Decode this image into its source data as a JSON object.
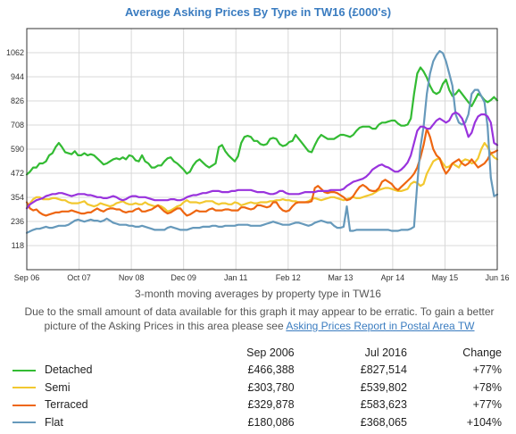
{
  "header": {
    "title": "Average Asking Prices By Type in TW16 (£000's)"
  },
  "footer": {
    "subtitle": "3-month moving averages by property type in TW16",
    "note_text": "Due to the small amount of data available for this graph it may appear to be erratic. To gain a better picture of the Asking Prices in this area please see ",
    "note_link": "Asking Prices Report in Postal Area TW"
  },
  "table": {
    "headers": [
      "",
      "Sep 2006",
      "Jul 2016",
      "Change"
    ],
    "rows": [
      {
        "name": "Detached",
        "color": "#33bb33",
        "sep2006": "£466,388",
        "jul2016": "£827,514",
        "change": "+77%"
      },
      {
        "name": "Semi",
        "color": "#f2c830",
        "sep2006": "£303,780",
        "jul2016": "£539,802",
        "change": "+78%"
      },
      {
        "name": "Terraced",
        "color": "#ee6611",
        "sep2006": "£329,878",
        "jul2016": "£583,623",
        "change": "+77%"
      },
      {
        "name": "Flat",
        "color": "#6699bb",
        "sep2006": "£180,086",
        "jul2016": "£368,065",
        "change": "+104%"
      }
    ]
  },
  "chart_data": {
    "type": "line",
    "title": "Average Asking Prices By Type in TW16 (£000's)",
    "xlabel": "",
    "ylabel": "",
    "x_ticks": [
      "Sep 06",
      "Oct 07",
      "Nov 08",
      "Dec 09",
      "Jan 11",
      "Feb 12",
      "Mar 13",
      "Apr 14",
      "May 15",
      "Jun 16"
    ],
    "y_ticks": [
      118,
      236,
      354,
      472,
      590,
      708,
      826,
      944,
      1062
    ],
    "ylim": [
      0,
      1180
    ],
    "grid": true,
    "series": [
      {
        "name": "Detached",
        "color": "#33bb33",
        "values": [
          466,
          480,
          500,
          500,
          520,
          520,
          530,
          560,
          570,
          600,
          620,
          600,
          575,
          570,
          565,
          580,
          560,
          560,
          570,
          560,
          565,
          560,
          545,
          530,
          515,
          520,
          530,
          540,
          545,
          540,
          550,
          540,
          560,
          555,
          535,
          530,
          560,
          530,
          520,
          500,
          500,
          510,
          510,
          530,
          545,
          550,
          530,
          520,
          505,
          490,
          470,
          480,
          510,
          530,
          540,
          525,
          510,
          500,
          510,
          520,
          600,
          610,
          580,
          560,
          545,
          530,
          555,
          620,
          650,
          655,
          650,
          630,
          630,
          615,
          610,
          615,
          640,
          645,
          640,
          615,
          605,
          610,
          625,
          630,
          660,
          640,
          620,
          600,
          580,
          575,
          610,
          640,
          660,
          650,
          640,
          640,
          640,
          650,
          660,
          660,
          655,
          650,
          660,
          680,
          695,
          700,
          700,
          700,
          690,
          690,
          710,
          720,
          720,
          725,
          730,
          730,
          715,
          705,
          705,
          710,
          740,
          860,
          960,
          990,
          970,
          940,
          900,
          870,
          860,
          870,
          910,
          930,
          880,
          850,
          860,
          880,
          860,
          840,
          820,
          800,
          830,
          860,
          850,
          830,
          820,
          830,
          845,
          828
        ]
      },
      {
        "name": "Semi",
        "color": "#f2c830",
        "values": [
          303,
          325,
          345,
          355,
          355,
          345,
          345,
          345,
          350,
          350,
          345,
          340,
          340,
          330,
          325,
          325,
          325,
          330,
          335,
          320,
          315,
          310,
          315,
          325,
          320,
          315,
          310,
          315,
          325,
          330,
          335,
          325,
          320,
          320,
          325,
          320,
          320,
          330,
          320,
          315,
          310,
          315,
          310,
          300,
          285,
          290,
          300,
          310,
          315,
          330,
          340,
          330,
          330,
          330,
          325,
          330,
          335,
          335,
          335,
          325,
          320,
          325,
          325,
          320,
          320,
          330,
          325,
          315,
          320,
          325,
          330,
          325,
          325,
          330,
          330,
          330,
          335,
          335,
          340,
          340,
          345,
          340,
          340,
          335,
          335,
          330,
          330,
          330,
          335,
          345,
          350,
          345,
          340,
          345,
          350,
          355,
          355,
          350,
          345,
          340,
          345,
          350,
          355,
          350,
          350,
          355,
          360,
          365,
          370,
          380,
          390,
          395,
          400,
          400,
          395,
          390,
          385,
          385,
          390,
          395,
          420,
          430,
          425,
          410,
          420,
          470,
          500,
          530,
          540,
          545,
          520,
          500,
          505,
          520,
          510,
          500,
          530,
          540,
          535,
          520,
          525,
          545,
          590,
          620,
          600,
          570,
          550,
          540
        ]
      },
      {
        "name": "Terraced",
        "color": "#ee6611",
        "values": [
          330,
          300,
          290,
          295,
          280,
          270,
          265,
          270,
          275,
          280,
          280,
          285,
          285,
          285,
          290,
          285,
          280,
          275,
          275,
          280,
          280,
          290,
          300,
          290,
          285,
          295,
          300,
          300,
          295,
          295,
          285,
          280,
          285,
          285,
          295,
          300,
          285,
          285,
          290,
          295,
          305,
          315,
          300,
          285,
          275,
          280,
          290,
          300,
          300,
          280,
          265,
          270,
          280,
          290,
          285,
          285,
          285,
          295,
          300,
          290,
          290,
          290,
          295,
          295,
          290,
          290,
          290,
          305,
          305,
          300,
          295,
          300,
          315,
          315,
          310,
          305,
          310,
          330,
          330,
          305,
          290,
          285,
          290,
          310,
          325,
          330,
          330,
          330,
          330,
          335,
          400,
          410,
          395,
          380,
          375,
          380,
          380,
          375,
          365,
          355,
          340,
          345,
          360,
          385,
          405,
          415,
          405,
          390,
          385,
          385,
          400,
          430,
          440,
          430,
          420,
          400,
          390,
          405,
          420,
          435,
          450,
          470,
          500,
          550,
          610,
          690,
          650,
          590,
          560,
          545,
          500,
          470,
          490,
          520,
          530,
          540,
          520,
          510,
          520,
          540,
          520,
          500,
          510,
          520,
          540,
          570,
          575,
          584
        ]
      },
      {
        "name": "Flat",
        "color": "#6699bb",
        "values": [
          180,
          188,
          195,
          200,
          200,
          205,
          210,
          205,
          205,
          210,
          215,
          215,
          215,
          220,
          230,
          240,
          245,
          240,
          235,
          240,
          245,
          240,
          240,
          235,
          240,
          250,
          240,
          230,
          225,
          220,
          220,
          220,
          215,
          215,
          210,
          210,
          215,
          210,
          205,
          200,
          195,
          195,
          195,
          195,
          205,
          210,
          205,
          200,
          195,
          195,
          195,
          200,
          205,
          205,
          205,
          210,
          210,
          210,
          215,
          215,
          210,
          210,
          215,
          215,
          215,
          215,
          220,
          220,
          220,
          220,
          215,
          215,
          215,
          215,
          220,
          225,
          230,
          235,
          230,
          225,
          220,
          220,
          220,
          225,
          230,
          230,
          225,
          220,
          215,
          220,
          230,
          235,
          240,
          235,
          230,
          230,
          215,
          205,
          205,
          210,
          310,
          190,
          190,
          195,
          195,
          195,
          195,
          195,
          195,
          195,
          195,
          195,
          195,
          195,
          190,
          190,
          190,
          195,
          195,
          195,
          200,
          210,
          420,
          600,
          700,
          860,
          960,
          1020,
          1050,
          1070,
          1060,
          1020,
          960,
          900,
          760,
          720,
          710,
          720,
          760,
          860,
          880,
          880,
          850,
          820,
          700,
          450,
          360,
          368
        ]
      },
      {
        "name": "",
        "color": "#9933dd",
        "values": [
          300,
          320,
          330,
          340,
          345,
          350,
          360,
          365,
          370,
          370,
          375,
          375,
          370,
          365,
          360,
          365,
          370,
          370,
          370,
          365,
          365,
          360,
          355,
          355,
          350,
          350,
          355,
          360,
          355,
          345,
          340,
          345,
          355,
          360,
          360,
          355,
          355,
          355,
          350,
          345,
          340,
          340,
          340,
          340,
          340,
          345,
          345,
          340,
          340,
          345,
          355,
          360,
          365,
          365,
          370,
          375,
          375,
          380,
          385,
          385,
          385,
          380,
          380,
          380,
          385,
          385,
          390,
          390,
          390,
          390,
          390,
          385,
          380,
          380,
          380,
          375,
          370,
          370,
          375,
          385,
          385,
          375,
          370,
          370,
          370,
          370,
          375,
          380,
          380,
          380,
          380,
          385,
          385,
          385,
          385,
          390,
          390,
          390,
          390,
          395,
          410,
          420,
          430,
          435,
          440,
          445,
          455,
          470,
          490,
          500,
          510,
          515,
          505,
          500,
          490,
          480,
          480,
          490,
          505,
          525,
          560,
          620,
          680,
          700,
          700,
          690,
          690,
          710,
          730,
          740,
          730,
          720,
          730,
          760,
          770,
          760,
          740,
          700,
          650,
          670,
          720,
          750,
          760,
          760,
          750,
          720,
          620,
          610
        ]
      }
    ]
  }
}
